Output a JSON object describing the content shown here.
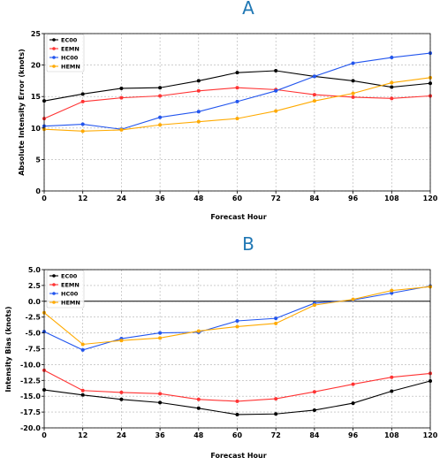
{
  "chart_data": [
    {
      "type": "line",
      "panel_label": "A",
      "title": "",
      "xlabel": "Forecast Hour",
      "ylabel": "Absolute Intensity Error (knots)",
      "x": [
        0,
        12,
        24,
        36,
        48,
        60,
        72,
        84,
        96,
        108,
        120
      ],
      "xticks": [
        "0",
        "12",
        "24",
        "36",
        "48",
        "60",
        "72",
        "84",
        "96",
        "108",
        "120"
      ],
      "xlim": [
        0,
        120
      ],
      "ylim": [
        0,
        25
      ],
      "yticks": [
        "0",
        "5",
        "10",
        "15",
        "20",
        "25"
      ],
      "grid": true,
      "legend_position": "top-left",
      "series": [
        {
          "name": "EC00",
          "color": "#000000",
          "values": [
            14.3,
            15.4,
            16.3,
            16.4,
            17.5,
            18.8,
            19.1,
            18.2,
            17.5,
            16.5,
            17.1
          ]
        },
        {
          "name": "EEMN",
          "color": "#ff3333",
          "values": [
            11.5,
            14.2,
            14.8,
            15.1,
            15.9,
            16.4,
            16.1,
            15.3,
            14.9,
            14.7,
            15.1
          ]
        },
        {
          "name": "HC00",
          "color": "#2255ee",
          "values": [
            10.3,
            10.6,
            9.8,
            11.7,
            12.6,
            14.2,
            15.9,
            18.2,
            20.3,
            21.2,
            21.9
          ]
        },
        {
          "name": "HEMN",
          "color": "#ffaa00",
          "values": [
            9.8,
            9.5,
            9.7,
            10.5,
            11.0,
            11.5,
            12.7,
            14.3,
            15.5,
            17.2,
            18.0
          ]
        }
      ]
    },
    {
      "type": "line",
      "panel_label": "B",
      "title": "",
      "xlabel": "Forecast Hour",
      "ylabel": "Intensity Bias (knots)",
      "x": [
        0,
        12,
        24,
        36,
        48,
        60,
        72,
        84,
        96,
        108,
        120
      ],
      "xticks": [
        "0",
        "12",
        "24",
        "36",
        "48",
        "60",
        "72",
        "84",
        "96",
        "108",
        "120"
      ],
      "xlim": [
        0,
        120
      ],
      "ylim": [
        -20,
        5
      ],
      "yticks": [
        "-20.0",
        "-17.5",
        "-15.0",
        "-12.5",
        "-10.0",
        "-7.5",
        "-5.0",
        "-2.5",
        "0.0",
        "2.5",
        "5.0"
      ],
      "zero_line": true,
      "grid": true,
      "legend_position": "top-left",
      "series": [
        {
          "name": "EC00",
          "color": "#000000",
          "values": [
            -14.0,
            -14.8,
            -15.5,
            -16.0,
            -16.9,
            -17.9,
            -17.8,
            -17.2,
            -16.1,
            -14.2,
            -12.6
          ]
        },
        {
          "name": "EEMN",
          "color": "#ff3333",
          "values": [
            -10.9,
            -14.1,
            -14.4,
            -14.6,
            -15.5,
            -15.8,
            -15.4,
            -14.3,
            -13.1,
            -12.0,
            -11.4
          ]
        },
        {
          "name": "HC00",
          "color": "#2255ee",
          "values": [
            -4.8,
            -7.7,
            -5.9,
            -5.0,
            -4.9,
            -3.1,
            -2.7,
            -0.3,
            0.2,
            1.3,
            2.4
          ]
        },
        {
          "name": "HEMN",
          "color": "#ffaa00",
          "values": [
            -1.8,
            -6.8,
            -6.2,
            -5.8,
            -4.7,
            -4.0,
            -3.5,
            -0.6,
            0.3,
            1.7,
            2.3
          ]
        }
      ]
    }
  ]
}
